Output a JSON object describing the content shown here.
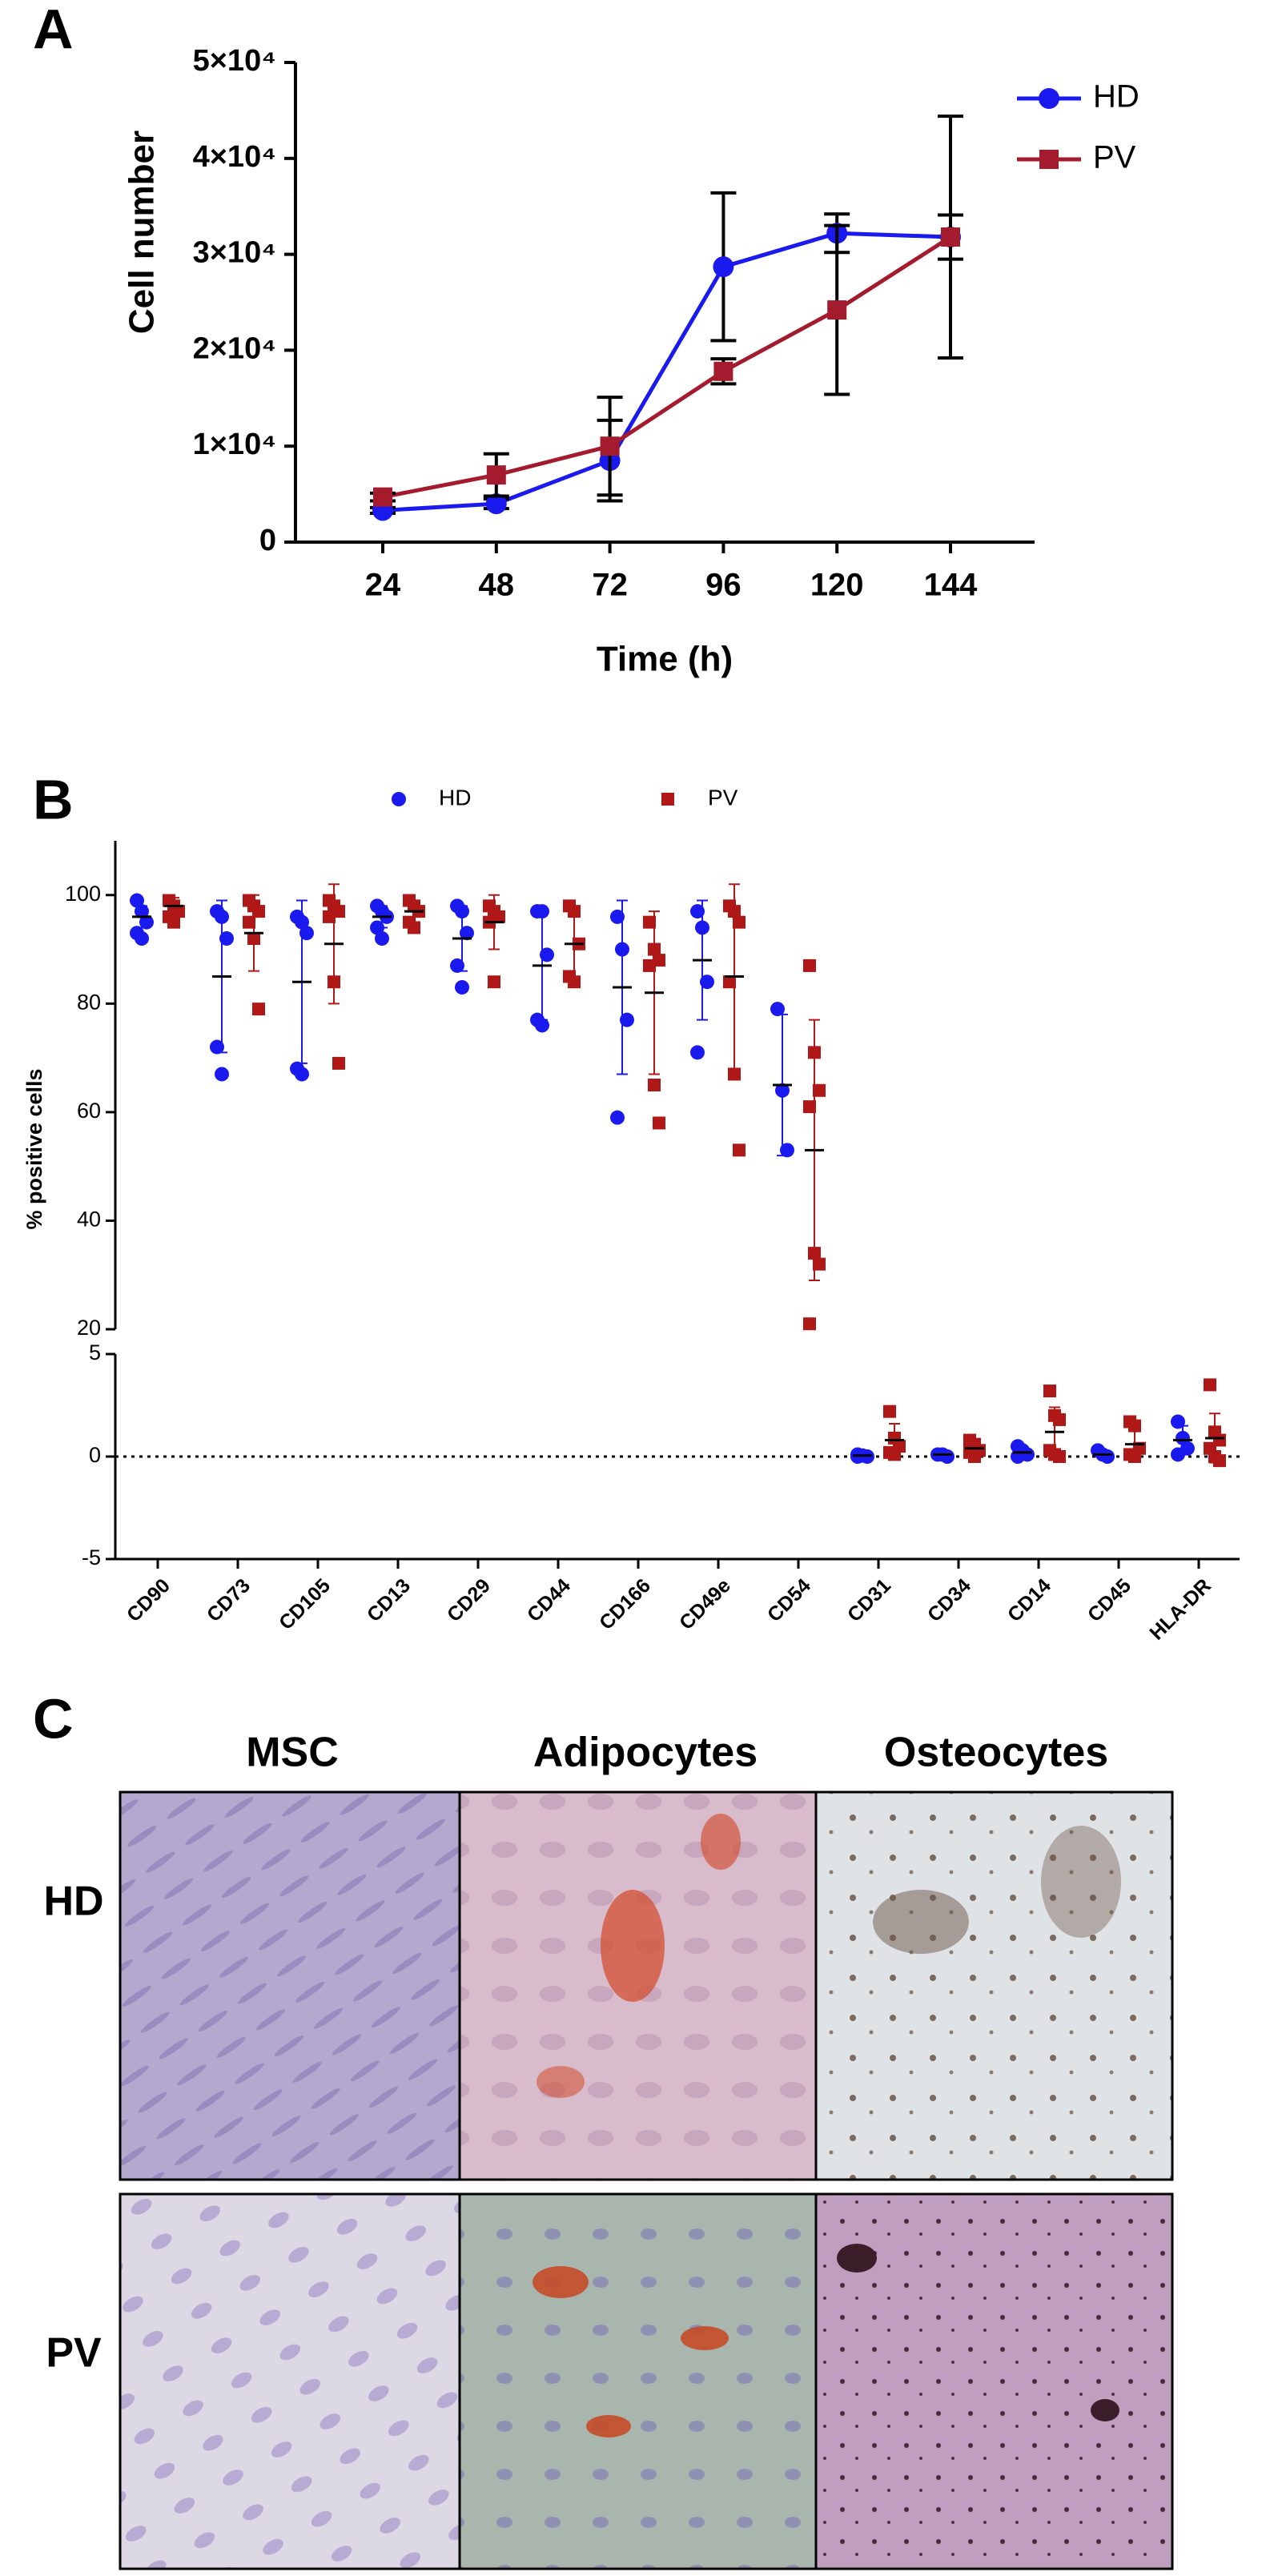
{
  "chart_data": [
    {
      "type": "line",
      "panel": "A",
      "xlabel": "Time (h)",
      "ylabel": "Cell number",
      "categories": [
        24,
        48,
        72,
        96,
        120,
        144
      ],
      "ylim": [
        0,
        50000
      ],
      "yticks": [
        0,
        {
          "value": 10000,
          "label": "1×10⁴"
        },
        {
          "value": 20000,
          "label": "2×10⁴"
        },
        {
          "value": 30000,
          "label": "3×10⁴"
        },
        {
          "value": 40000,
          "label": "4×10⁴"
        },
        {
          "value": 50000,
          "label": "5×10⁴"
        }
      ],
      "legend": "right",
      "error_color": "#000000",
      "series": [
        {
          "name": "HD",
          "color": "#1a1aee",
          "marker": "circle",
          "values": [
            3300,
            4000,
            8500,
            28700,
            32200,
            31800
          ],
          "errors": [
            300,
            500,
            4200,
            7700,
            2000,
            12600
          ]
        },
        {
          "name": "PV",
          "color": "#a51b2e",
          "marker": "square",
          "values": [
            4700,
            7000,
            10000,
            17800,
            24200,
            31800
          ],
          "errors": [
            400,
            2200,
            5100,
            1300,
            8800,
            2300
          ]
        }
      ]
    },
    {
      "type": "dot",
      "panel": "B",
      "ylabel": "% positive cells",
      "categories": [
        "CD90",
        "CD73",
        "CD105",
        "CD13",
        "CD29",
        "CD44",
        "CD166",
        "CD49e",
        "CD54",
        "CD31",
        "CD34",
        "CD14",
        "CD45",
        "HLA-DR"
      ],
      "ylim": [
        20,
        110
      ],
      "yticks": [
        20,
        40,
        60,
        80,
        100
      ],
      "ylim_lower": [
        -5,
        5
      ],
      "yticks_lower": [
        -5,
        0,
        5
      ],
      "zero_line": true,
      "legend": "top",
      "series": [
        {
          "name": "HD",
          "color": "#1a1aee",
          "marker": "circle",
          "points": [
            [
              99,
              97,
              95,
              93,
              92
            ],
            [
              97,
              96,
              92,
              72,
              67
            ],
            [
              96,
              95,
              93,
              68,
              67
            ],
            [
              98,
              97,
              96,
              94,
              92
            ],
            [
              98,
              97,
              93,
              87,
              83
            ],
            [
              97,
              97,
              89,
              77,
              76
            ],
            [
              96,
              90,
              77,
              59
            ],
            [
              97,
              94,
              84,
              71
            ],
            [
              79,
              64,
              53
            ],
            [
              0.1,
              0.05,
              0,
              0
            ],
            [
              0.1,
              0.1,
              0
            ],
            [
              0.5,
              0.3,
              0.1,
              0
            ],
            [
              0.3,
              0.1,
              0
            ],
            [
              1.7,
              0.9,
              0.4,
              0.1
            ]
          ],
          "means": [
            96,
            85,
            84,
            96,
            92,
            87,
            83,
            88,
            65,
            0.05,
            0.1,
            0.2,
            0.1,
            0.8
          ],
          "sds": [
            2,
            14,
            15,
            2,
            6,
            10,
            16,
            11,
            13,
            0.05,
            0.05,
            0.2,
            0.15,
            0.7
          ]
        },
        {
          "name": "PV",
          "color": "#b01818",
          "marker": "square",
          "points": [
            [
              99,
              98,
              97,
              96,
              95
            ],
            [
              99,
              98,
              97,
              95,
              92,
              79
            ],
            [
              99,
              98,
              97,
              96,
              84,
              69
            ],
            [
              99,
              98,
              97,
              95,
              94
            ],
            [
              98,
              97,
              96,
              95,
              84
            ],
            [
              98,
              97,
              91,
              85,
              84
            ],
            [
              95,
              90,
              88,
              87,
              65,
              58
            ],
            [
              98,
              97,
              95,
              84,
              67,
              53
            ],
            [
              87,
              71,
              64,
              61,
              34,
              32,
              21
            ],
            [
              2.2,
              0.9,
              0.5,
              0.2,
              0.1
            ],
            [
              0.8,
              0.6,
              0.3,
              0.2,
              0
            ],
            [
              3.2,
              2.0,
              1.8,
              0.3,
              0.1,
              0
            ],
            [
              1.7,
              1.5,
              0.4,
              0.1,
              0
            ],
            [
              3.5,
              1.2,
              0.8,
              0.4,
              0,
              -0.2
            ]
          ],
          "means": [
            98,
            93,
            91,
            97,
            95,
            91,
            82,
            85,
            53,
            0.8,
            0.4,
            1.2,
            0.6,
            0.9
          ],
          "sds": [
            1.5,
            7,
            11,
            2,
            5,
            6,
            15,
            17,
            24,
            0.8,
            0.3,
            1.2,
            0.8,
            1.2
          ]
        }
      ]
    }
  ],
  "panel_c": {
    "panel": "C",
    "columns": [
      "MSC",
      "Adipocytes",
      "Osteocytes"
    ],
    "rows": [
      "HD",
      "PV"
    ]
  }
}
